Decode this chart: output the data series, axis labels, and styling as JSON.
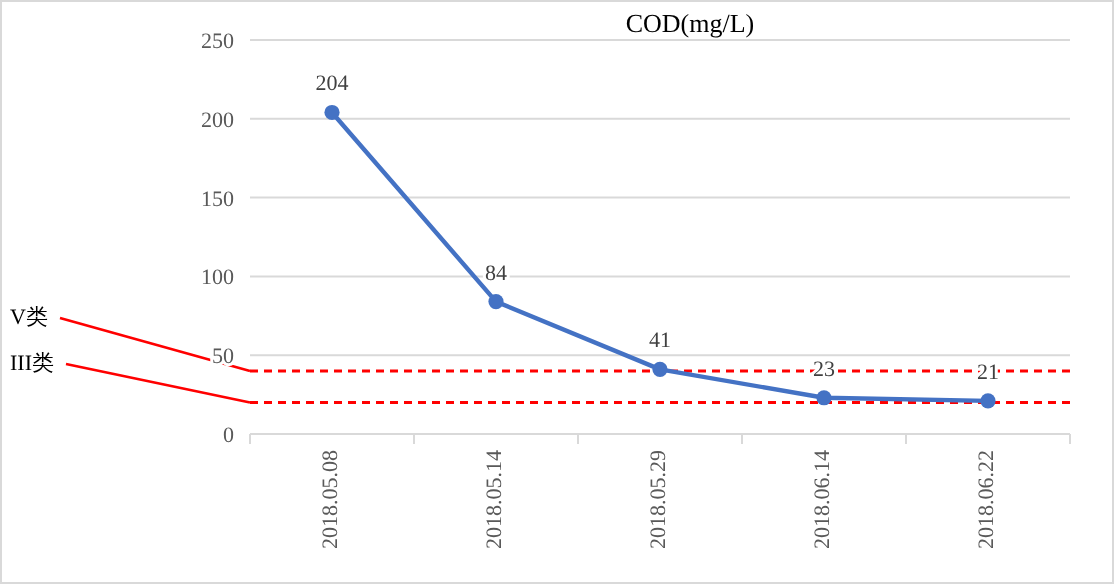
{
  "chart_data": {
    "type": "line",
    "title": "COD(mg/L)",
    "categories": [
      "2018.05.08",
      "2018.05.14",
      "2018.05.29",
      "2018.06.14",
      "2018.06.22"
    ],
    "series": [
      {
        "color": "#4472c4",
        "values": [
          204,
          84,
          41,
          23,
          21
        ]
      }
    ],
    "ylim": [
      0,
      250
    ],
    "yticks": [
      0,
      50,
      100,
      150,
      200,
      250
    ],
    "grid": "y",
    "marker": "circle",
    "line_style": "solid",
    "data_labels": true,
    "ref_lines": [
      {
        "axis": "y",
        "value": 40,
        "label": "V类",
        "color": "#ff0000",
        "line_style": "dashed"
      },
      {
        "axis": "y",
        "value": 20,
        "label": "III类",
        "color": "#ff0000",
        "line_style": "dashed"
      }
    ]
  }
}
